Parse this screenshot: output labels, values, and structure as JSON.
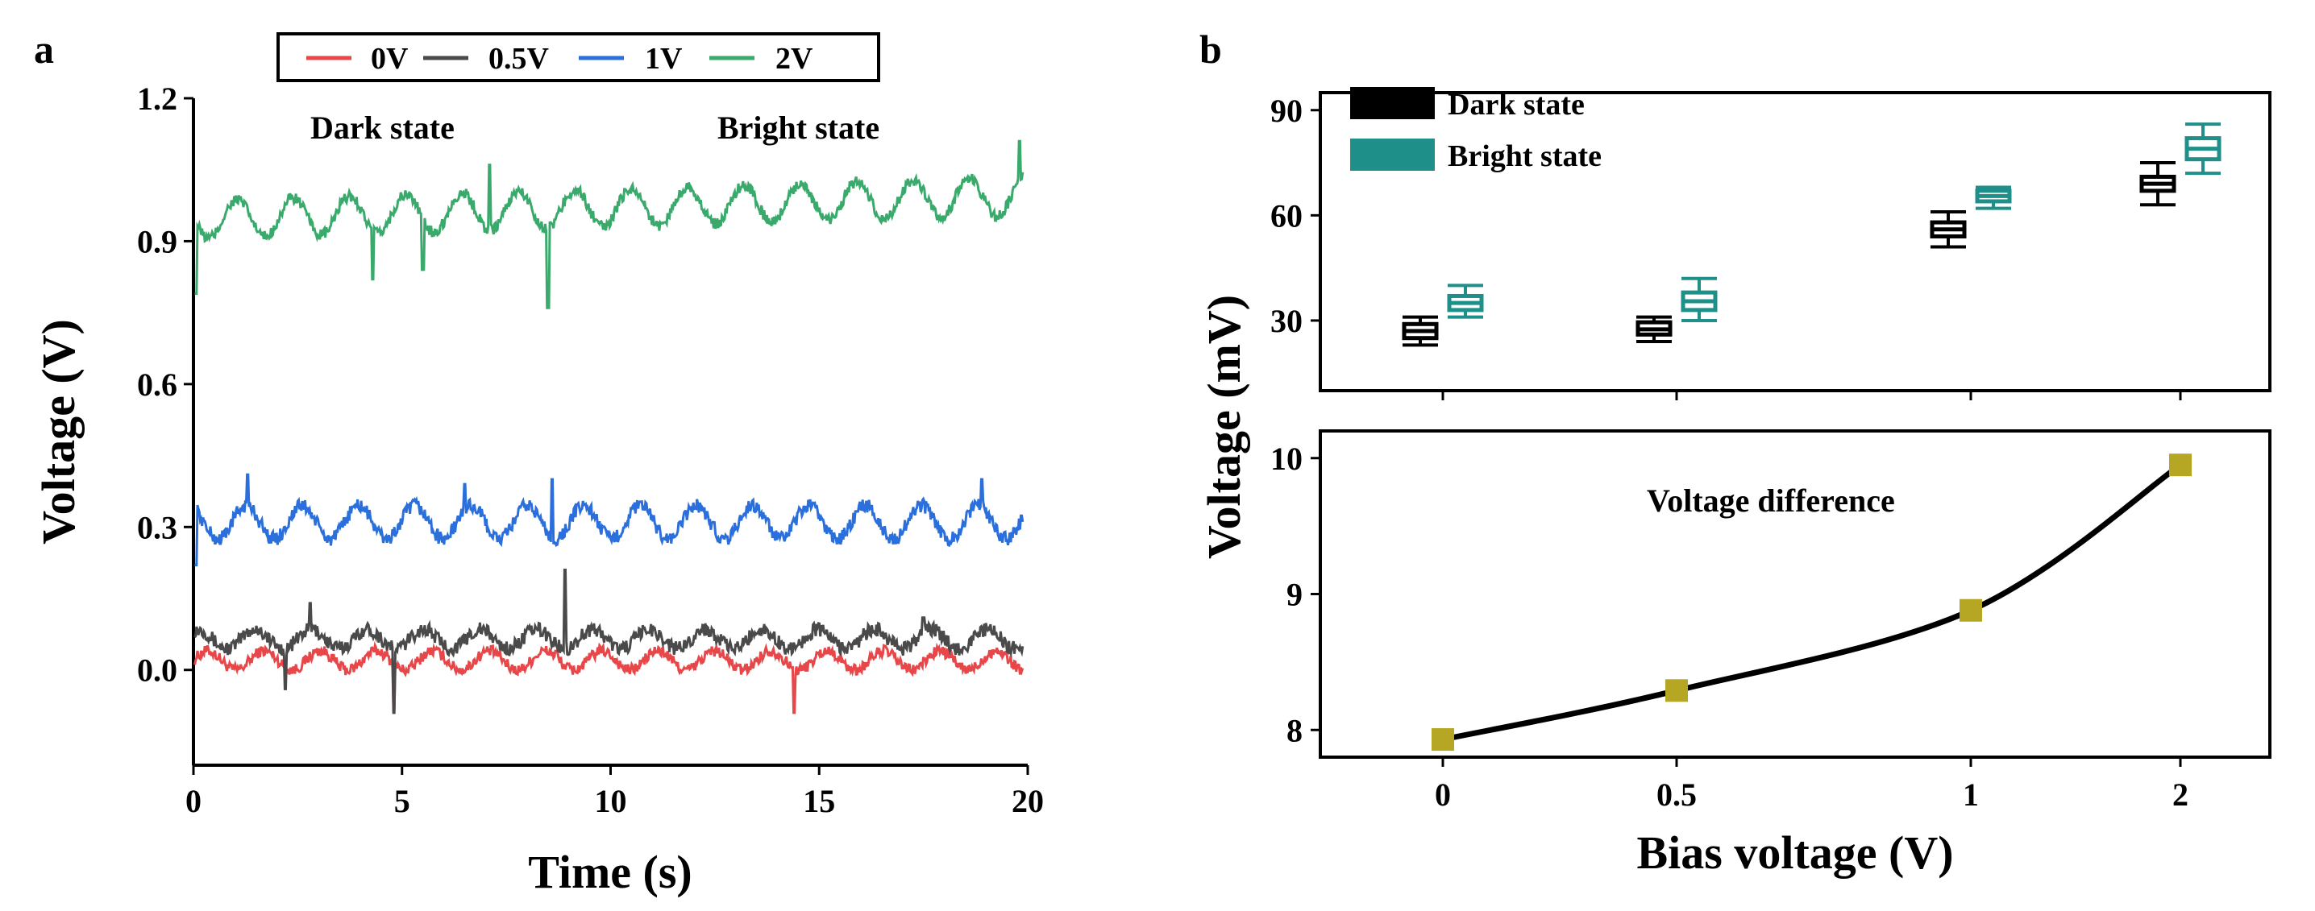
{
  "panels": {
    "a": "a",
    "b": "b"
  },
  "chart_data": [
    {
      "type": "line",
      "panel": "a",
      "title": "",
      "xlabel": "Time (s)",
      "ylabel": "Voltage (V)",
      "xlim": [
        0,
        20
      ],
      "ylim": [
        -0.2,
        1.2
      ],
      "xticks": [
        0,
        5,
        10,
        15,
        20
      ],
      "xtick_labels": [
        "0",
        "5",
        "10",
        "15",
        "20"
      ],
      "yticks": [
        0.0,
        0.3,
        0.6,
        0.9,
        1.2
      ],
      "ytick_labels": [
        "0.0",
        "0.3",
        "0.6",
        "0.9",
        "1.2"
      ],
      "legend_position": "top",
      "annotations": [
        "Dark state",
        "Bright state"
      ],
      "series": [
        {
          "name": "0V",
          "color": "#e8474a",
          "baseline": 0.02,
          "amplitude": 0.02,
          "noise": 0.012,
          "spikes": [
            [
              4.8,
              -0.08
            ],
            [
              14.4,
              -0.09
            ],
            [
              8.7,
              0.04
            ]
          ]
        },
        {
          "name": "0.5V",
          "color": "#4a4a4a",
          "baseline": 0.065,
          "amplitude": 0.02,
          "noise": 0.015,
          "spikes": [
            [
              2.8,
              0.14
            ],
            [
              8.9,
              0.21
            ],
            [
              4.8,
              -0.09
            ],
            [
              2.2,
              -0.04
            ],
            [
              17.5,
              0.11
            ]
          ]
        },
        {
          "name": "1V",
          "color": "#2a6fdb",
          "baseline": 0.31,
          "amplitude": 0.035,
          "noise": 0.015,
          "spikes": [
            [
              1.3,
              0.41
            ],
            [
              6.5,
              0.39
            ],
            [
              8.6,
              0.4
            ],
            [
              18.9,
              0.4
            ],
            [
              0.05,
              0.22
            ]
          ]
        },
        {
          "name": "2V",
          "color": "#3aaa6c",
          "baseline": 0.945,
          "amplitude": 0.04,
          "noise": 0.012,
          "drift": 0.05,
          "spikes": [
            [
              0.05,
              0.79
            ],
            [
              4.3,
              0.82
            ],
            [
              5.5,
              0.84
            ],
            [
              7.1,
              1.06
            ],
            [
              8.5,
              0.76
            ],
            [
              19.8,
              1.11
            ]
          ]
        }
      ]
    },
    {
      "type": "box",
      "panel": "b-top",
      "ylabel": "Voltage (mV)",
      "categories": [
        "0",
        "0.5",
        "1",
        "2"
      ],
      "ylim": [
        10,
        95
      ],
      "yticks": [
        30,
        60,
        90
      ],
      "ytick_labels": [
        "30",
        "60",
        "90"
      ],
      "legend_position": "top-left",
      "series": [
        {
          "name": "Dark state",
          "color": "#000000",
          "boxes": [
            {
              "min": 23,
              "q1": 25,
              "median": 27,
              "q3": 29,
              "max": 31
            },
            {
              "min": 24,
              "q1": 26,
              "median": 27.5,
              "q3": 29.5,
              "max": 31
            },
            {
              "min": 51,
              "q1": 54,
              "median": 56,
              "q3": 58,
              "max": 61
            },
            {
              "min": 63,
              "q1": 67,
              "median": 69,
              "q3": 71,
              "max": 75
            }
          ]
        },
        {
          "name": "Bright state",
          "color": "#1f8f8a",
          "boxes": [
            {
              "min": 31,
              "q1": 33,
              "median": 35,
              "q3": 37,
              "max": 40
            },
            {
              "min": 30,
              "q1": 33,
              "median": 35.5,
              "q3": 38,
              "max": 42
            },
            {
              "min": 62,
              "q1": 64,
              "median": 65.5,
              "q3": 67,
              "max": 68
            },
            {
              "min": 72,
              "q1": 76,
              "median": 79,
              "q3": 82,
              "max": 86
            }
          ]
        }
      ]
    },
    {
      "type": "line",
      "panel": "b-bottom",
      "xlabel": "Bias voltage (V)",
      "ylabel": "Voltage (mV)",
      "annotation": "Voltage difference",
      "categories": [
        "0",
        "0.5",
        "1",
        "2"
      ],
      "ylim": [
        7.8,
        10.2
      ],
      "yticks": [
        8,
        9,
        10
      ],
      "ytick_labels": [
        "8",
        "9",
        "10"
      ],
      "series": [
        {
          "name": "Voltage difference",
          "color": "#000000",
          "marker_color": "#b5a623",
          "values": [
            7.93,
            8.29,
            8.88,
            9.95
          ]
        }
      ]
    }
  ]
}
